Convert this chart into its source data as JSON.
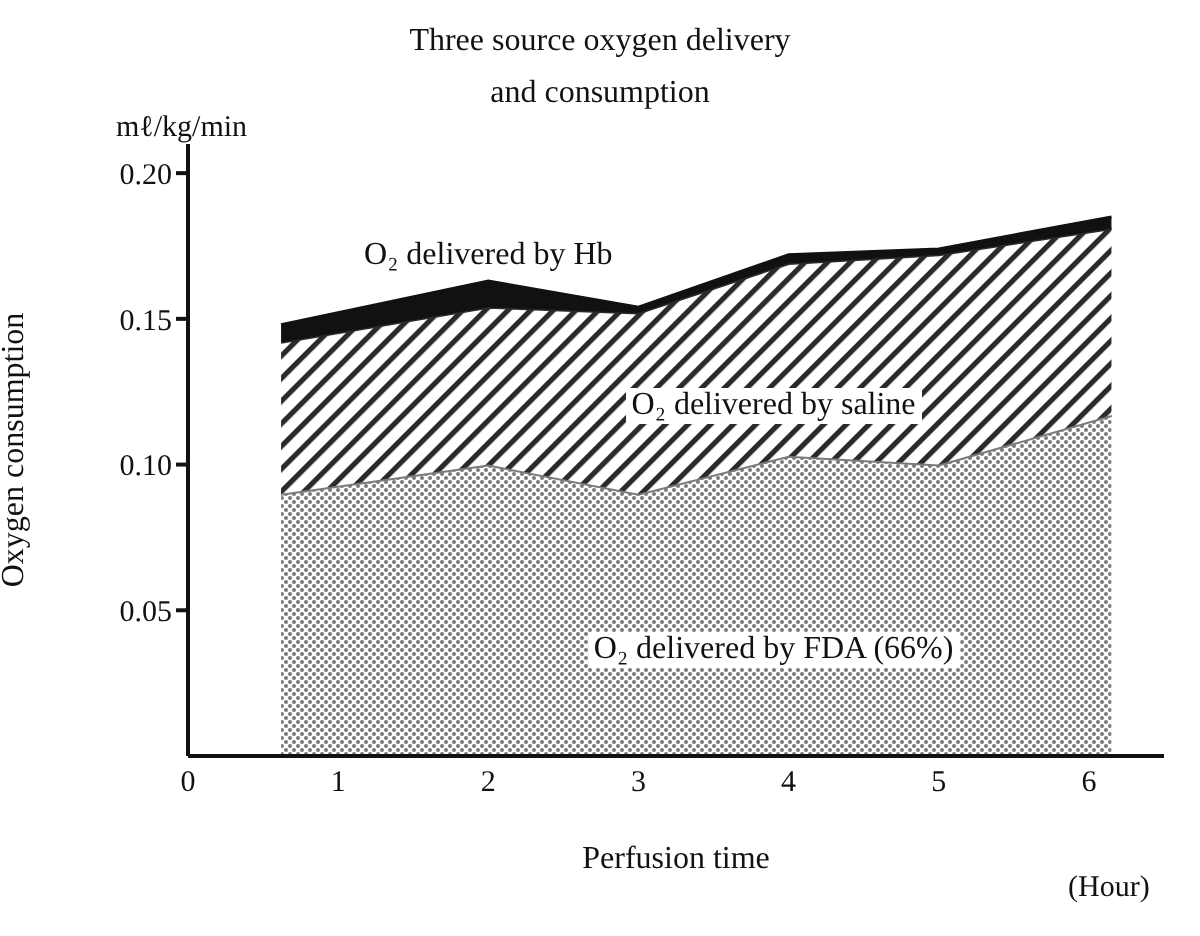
{
  "chart_data": {
    "type": "area",
    "title": "Three source oxygen delivery\nand consumption",
    "xlabel": "Perfusion time",
    "ylabel": "Oxygen consumption",
    "annotations": [
      "mℓ/kg/min",
      "(Hour)"
    ],
    "stacked": true,
    "x": [
      0.62,
      2,
      3,
      4,
      5,
      6.15
    ],
    "xlim": [
      0,
      6.5
    ],
    "xticks": [
      0,
      1,
      2,
      3,
      4,
      5,
      6
    ],
    "ylim": [
      0,
      0.21
    ],
    "yticks": [
      0.05,
      {
        "value": 0.1,
        "label": "0.10"
      },
      0.15,
      {
        "value": 0.2,
        "label": "0.20"
      }
    ],
    "legend": false,
    "grid": false,
    "series": [
      {
        "name": "O₂ delivered by FDA (66%)",
        "color": "#7a7a7a",
        "values": [
          0.09,
          0.1,
          0.09,
          0.103,
          0.1,
          0.117
        ]
      },
      {
        "name": "O₂ delivered by saline",
        "color": "#2a2a2a",
        "values": [
          0.052,
          0.054,
          0.062,
          0.066,
          0.072,
          0.064
        ]
      },
      {
        "name": "O₂ delivered by Hb",
        "color": "#111111",
        "values": [
          0.006,
          0.009,
          0.002,
          0.003,
          0.002,
          0.004
        ]
      }
    ]
  }
}
